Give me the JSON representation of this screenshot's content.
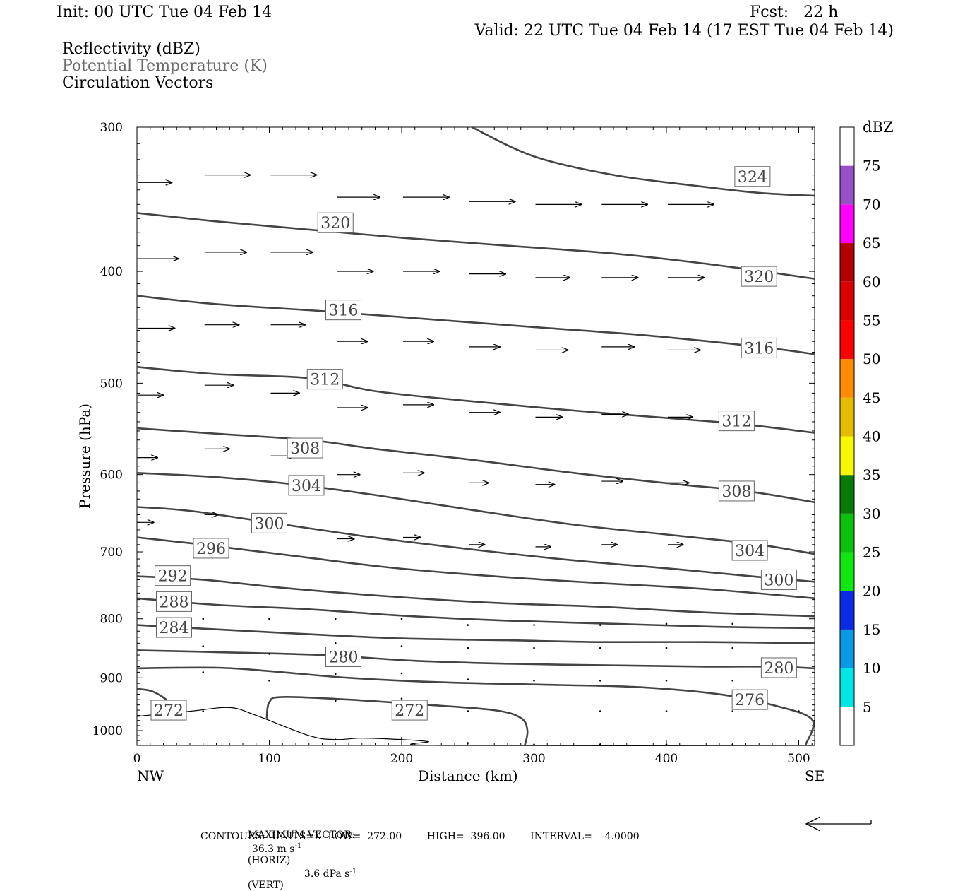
{
  "header": {
    "init": "Init: 00 UTC Tue 04 Feb 14",
    "fcst": "Fcst:   22 h",
    "valid": "Valid: 22 UTC Tue 04 Feb 14 (17 EST Tue 04 Feb 14)",
    "fields": [
      "Reflectivity (dBZ)",
      "Potential Temperature (K)",
      "Circulation Vectors"
    ]
  },
  "chart_data": {
    "type": "line",
    "title": "",
    "xlabel": "Distance (km)",
    "ylabel": "Pressure (hPa)",
    "xlim": [
      0,
      512
    ],
    "ylim": [
      1030,
      300
    ],
    "y_scale": "log",
    "x_ticks": [
      "0",
      "100",
      "200",
      "300",
      "400",
      "500"
    ],
    "y_ticks": [
      "300",
      "400",
      "500",
      "600",
      "700",
      "800",
      "900",
      "1000"
    ],
    "x_endpoints": {
      "left": "NW",
      "right": "SE"
    },
    "series_color": "#444444",
    "contours": [
      {
        "level": "324",
        "points": [
          [
            253,
            300
          ],
          [
            300,
            318
          ],
          [
            360,
            330
          ],
          [
            420,
            337
          ],
          [
            470,
            342
          ],
          [
            512,
            344
          ]
        ],
        "labels": [
          [
            465,
            331
          ]
        ]
      },
      {
        "level": "320",
        "points": [
          [
            0,
            356
          ],
          [
            60,
            362
          ],
          [
            130,
            368
          ],
          [
            200,
            374
          ],
          [
            280,
            380
          ],
          [
            360,
            386
          ],
          [
            430,
            394
          ],
          [
            480,
            401
          ],
          [
            512,
            406
          ]
        ],
        "labels": [
          [
            150,
            363
          ],
          [
            470,
            404
          ]
        ]
      },
      {
        "level": "316",
        "points": [
          [
            0,
            420
          ],
          [
            60,
            427
          ],
          [
            140,
            433
          ],
          [
            220,
            440
          ],
          [
            300,
            447
          ],
          [
            380,
            454
          ],
          [
            440,
            461
          ],
          [
            490,
            468
          ],
          [
            512,
            472
          ]
        ],
        "labels": [
          [
            156,
            432
          ],
          [
            470,
            466
          ]
        ]
      },
      {
        "level": "312",
        "points": [
          [
            0,
            484
          ],
          [
            60,
            491
          ],
          [
            130,
            495
          ],
          [
            180,
            508
          ],
          [
            250,
            518
          ],
          [
            330,
            528
          ],
          [
            410,
            537
          ],
          [
            460,
            543
          ],
          [
            512,
            552
          ]
        ],
        "labels": [
          [
            142,
            496
          ],
          [
            453,
            539
          ]
        ]
      },
      {
        "level": "308",
        "points": [
          [
            0,
            547
          ],
          [
            60,
            553
          ],
          [
            130,
            560
          ],
          [
            180,
            570
          ],
          [
            250,
            582
          ],
          [
            330,
            598
          ],
          [
            410,
            612
          ],
          [
            460,
            620
          ],
          [
            512,
            634
          ]
        ],
        "labels": [
          [
            127,
            569
          ],
          [
            453,
            620
          ]
        ]
      },
      {
        "level": "304",
        "points": [
          [
            0,
            598
          ],
          [
            60,
            603
          ],
          [
            120,
            612
          ],
          [
            180,
            625
          ],
          [
            250,
            643
          ],
          [
            330,
            663
          ],
          [
            410,
            678
          ],
          [
            470,
            690
          ],
          [
            512,
            703
          ]
        ],
        "labels": [
          [
            128,
            613
          ],
          [
            463,
            698
          ]
        ]
      },
      {
        "level": "300",
        "points": [
          [
            0,
            640
          ],
          [
            40,
            645
          ],
          [
            100,
            660
          ],
          [
            170,
            678
          ],
          [
            250,
            696
          ],
          [
            330,
            712
          ],
          [
            410,
            725
          ],
          [
            470,
            736
          ],
          [
            512,
            743
          ]
        ],
        "labels": [
          [
            100,
            661
          ],
          [
            485,
            740
          ]
        ]
      },
      {
        "level": "296",
        "points": [
          [
            0,
            680
          ],
          [
            50,
            690
          ],
          [
            120,
            706
          ],
          [
            190,
            722
          ],
          [
            270,
            735
          ],
          [
            350,
            745
          ],
          [
            430,
            754
          ],
          [
            512,
            768
          ]
        ],
        "labels": [
          [
            56,
            695
          ]
        ]
      },
      {
        "level": "292",
        "points": [
          [
            0,
            735
          ],
          [
            50,
            740
          ],
          [
            110,
            752
          ],
          [
            190,
            765
          ],
          [
            270,
            775
          ],
          [
            350,
            781
          ],
          [
            430,
            790
          ],
          [
            512,
            796
          ]
        ],
        "labels": [
          [
            27,
            734
          ]
        ]
      },
      {
        "level": "288",
        "points": [
          [
            0,
            768
          ],
          [
            60,
            778
          ],
          [
            130,
            785
          ],
          [
            200,
            795
          ],
          [
            280,
            803
          ],
          [
            360,
            808
          ],
          [
            440,
            813
          ],
          [
            512,
            815
          ]
        ],
        "labels": [
          [
            28,
            773
          ]
        ]
      },
      {
        "level": "284",
        "points": [
          [
            0,
            810
          ],
          [
            60,
            817
          ],
          [
            130,
            825
          ],
          [
            200,
            832
          ],
          [
            280,
            835
          ],
          [
            350,
            838
          ],
          [
            430,
            838
          ],
          [
            512,
            840
          ]
        ],
        "labels": [
          [
            28,
            814
          ]
        ]
      },
      {
        "level": "280",
        "points": [
          [
            0,
            852
          ],
          [
            60,
            855
          ],
          [
            140,
            860
          ],
          [
            210,
            870
          ],
          [
            280,
            875
          ],
          [
            360,
            878
          ],
          [
            430,
            880
          ],
          [
            480,
            880
          ],
          [
            512,
            883
          ]
        ],
        "labels": [
          [
            156,
            863
          ],
          [
            485,
            882
          ]
        ]
      },
      {
        "level": "276",
        "points": [
          [
            0,
            883
          ],
          [
            60,
            882
          ],
          [
            100,
            888
          ],
          [
            160,
            900
          ],
          [
            230,
            908
          ],
          [
            320,
            913
          ],
          [
            380,
            917
          ],
          [
            440,
            930
          ],
          [
            480,
            950
          ],
          [
            510,
            978
          ],
          [
            505,
            1030
          ]
        ],
        "labels": [
          [
            463,
            940
          ]
        ]
      },
      {
        "level": "272",
        "points": [
          [
            98,
            976
          ],
          [
            100,
            945
          ],
          [
            110,
            935
          ],
          [
            160,
            940
          ],
          [
            220,
            950
          ],
          [
            270,
            960
          ],
          [
            290,
            975
          ],
          [
            295,
            1000
          ],
          [
            293,
            1030
          ]
        ],
        "labels": [
          [
            206,
            960
          ]
        ]
      },
      {
        "level": "272",
        "points": [
          [
            0,
            920
          ],
          [
            12,
            925
          ],
          [
            24,
            945
          ],
          [
            20,
            960
          ]
        ],
        "labels": [
          [
            24,
            960
          ]
        ]
      }
    ],
    "surface_line": [
      [
        0,
        972
      ],
      [
        40,
        962
      ],
      [
        70,
        955
      ],
      [
        90,
        970
      ],
      [
        130,
        1010
      ],
      [
        150,
        1018
      ],
      [
        170,
        1015
      ],
      [
        200,
        1018
      ],
      [
        220,
        1022
      ],
      [
        230,
        1030
      ],
      [
        512,
        1030
      ]
    ],
    "circulation_vectors_approx": [
      {
        "x": 0,
        "p": 335,
        "u": 35
      },
      {
        "x": 50,
        "p": 330,
        "u": 48
      },
      {
        "x": 100,
        "p": 330,
        "u": 48
      },
      {
        "x": 150,
        "p": 345,
        "u": 45
      },
      {
        "x": 200,
        "p": 345,
        "u": 48
      },
      {
        "x": 250,
        "p": 348,
        "u": 48
      },
      {
        "x": 300,
        "p": 350,
        "u": 48
      },
      {
        "x": 350,
        "p": 350,
        "u": 48
      },
      {
        "x": 400,
        "p": 350,
        "u": 48
      },
      {
        "x": 0,
        "p": 390,
        "u": 42
      },
      {
        "x": 50,
        "p": 385,
        "u": 44
      },
      {
        "x": 100,
        "p": 385,
        "u": 44
      },
      {
        "x": 150,
        "p": 400,
        "u": 38
      },
      {
        "x": 200,
        "p": 400,
        "u": 38
      },
      {
        "x": 250,
        "p": 402,
        "u": 38
      },
      {
        "x": 300,
        "p": 405,
        "u": 36
      },
      {
        "x": 350,
        "p": 405,
        "u": 38
      },
      {
        "x": 400,
        "p": 405,
        "u": 38
      },
      {
        "x": 0,
        "p": 448,
        "u": 38
      },
      {
        "x": 50,
        "p": 445,
        "u": 36
      },
      {
        "x": 100,
        "p": 445,
        "u": 36
      },
      {
        "x": 150,
        "p": 460,
        "u": 32
      },
      {
        "x": 200,
        "p": 460,
        "u": 32
      },
      {
        "x": 250,
        "p": 465,
        "u": 32
      },
      {
        "x": 300,
        "p": 468,
        "u": 34
      },
      {
        "x": 350,
        "p": 465,
        "u": 34
      },
      {
        "x": 400,
        "p": 468,
        "u": 34
      },
      {
        "x": 0,
        "p": 512,
        "u": 26
      },
      {
        "x": 50,
        "p": 502,
        "u": 30
      },
      {
        "x": 100,
        "p": 510,
        "u": 30
      },
      {
        "x": 150,
        "p": 525,
        "u": 32
      },
      {
        "x": 200,
        "p": 522,
        "u": 32
      },
      {
        "x": 250,
        "p": 530,
        "u": 32
      },
      {
        "x": 300,
        "p": 535,
        "u": 28
      },
      {
        "x": 350,
        "p": 532,
        "u": 28
      },
      {
        "x": 400,
        "p": 535,
        "u": 26
      },
      {
        "x": 0,
        "p": 580,
        "u": 20
      },
      {
        "x": 50,
        "p": 570,
        "u": 26
      },
      {
        "x": 100,
        "p": 578,
        "u": 26
      },
      {
        "x": 150,
        "p": 600,
        "u": 24
      },
      {
        "x": 200,
        "p": 598,
        "u": 22
      },
      {
        "x": 250,
        "p": 610,
        "u": 20
      },
      {
        "x": 300,
        "p": 612,
        "u": 20
      },
      {
        "x": 350,
        "p": 608,
        "u": 22
      },
      {
        "x": 400,
        "p": 610,
        "u": 22
      },
      {
        "x": 0,
        "p": 660,
        "u": 16
      },
      {
        "x": 50,
        "p": 650,
        "u": 14
      },
      {
        "x": 150,
        "p": 682,
        "u": 18
      },
      {
        "x": 200,
        "p": 680,
        "u": 18
      },
      {
        "x": 250,
        "p": 690,
        "u": 16
      },
      {
        "x": 300,
        "p": 693,
        "u": 16
      },
      {
        "x": 350,
        "p": 690,
        "u": 16
      },
      {
        "x": 400,
        "p": 690,
        "u": 16
      }
    ],
    "colorbar": {
      "label": "dBZ",
      "levels": [
        "5",
        "10",
        "15",
        "20",
        "25",
        "30",
        "35",
        "40",
        "45",
        "50",
        "55",
        "60",
        "65",
        "70",
        "75"
      ],
      "colors": [
        "#00e5e5",
        "#0a99e5",
        "#0a2ae5",
        "#0ee80e",
        "#0cc10c",
        "#077a07",
        "#f7f700",
        "#e6bc00",
        "#ff8c00",
        "#ff0000",
        "#dd0000",
        "#b40000",
        "#ff00ff",
        "#9850c8"
      ]
    }
  },
  "footer": {
    "max_vector_label": "MAXIMUM VECTOR:",
    "horiz": "36.3 m s",
    "horiz_unit": "-1",
    "horiz_tag": "(HORIZ)",
    "vert": "3.6 dPa s",
    "vert_unit": "-1",
    "vert_tag": "(VERT)",
    "contours": "CONTOURS:  UNITS=K  LOW=  272.00        HIGH=  396.00        INTERVAL=    4.0000"
  }
}
